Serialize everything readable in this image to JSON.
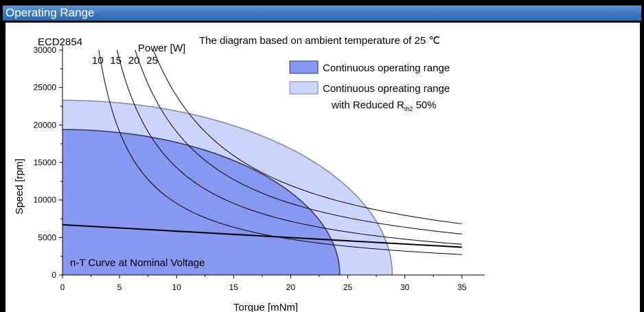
{
  "header": {
    "title": "Operating Range"
  },
  "chart_data": {
    "type": "area",
    "model_label": "ECD2854",
    "note": "The diagram based on ambient temperature of 25 ℃",
    "xlabel": "Torque [mNm]",
    "ylabel": "Speed [rpm]",
    "xlim": [
      0,
      37
    ],
    "ylim": [
      0,
      30000
    ],
    "x_ticks": [
      0,
      5,
      10,
      15,
      20,
      25,
      30,
      35
    ],
    "x_tick_labels": [
      "0",
      "5",
      "10",
      "15",
      "20",
      "25",
      "30",
      "35"
    ],
    "y_ticks": [
      0,
      5000,
      10000,
      15000,
      20000,
      25000,
      30000
    ],
    "y_tick_labels": [
      "0",
      "5000",
      "10000",
      "15000",
      "20000",
      "25000",
      "30000"
    ],
    "regions": [
      {
        "name": "Continuous opreating range",
        "name_suffix": "with Reduced R",
        "name_subscript": "th2",
        "name_tail": " 50%",
        "color": "#ccd4fb",
        "stroke": "#7c86a8",
        "speed_at_zero_torque": 23300,
        "torque_at_zero_speed": 28.9
      },
      {
        "name": "Continuous operating range",
        "color": "#8797f2",
        "stroke": "#2e3563",
        "speed_at_zero_torque": 19400,
        "torque_at_zero_speed": 24.3
      }
    ],
    "power_label": "Power [W]",
    "power_curves": [
      {
        "label": "10",
        "power_w": 10
      },
      {
        "label": "15",
        "power_w": 15
      },
      {
        "label": "20",
        "power_w": 20
      },
      {
        "label": "25",
        "power_w": 25
      }
    ],
    "power_curve_x_end": 35,
    "nt_curve": {
      "label": "n-T Curve at Nominal Voltage",
      "x": [
        0,
        35
      ],
      "y": [
        6700,
        3700
      ]
    }
  }
}
